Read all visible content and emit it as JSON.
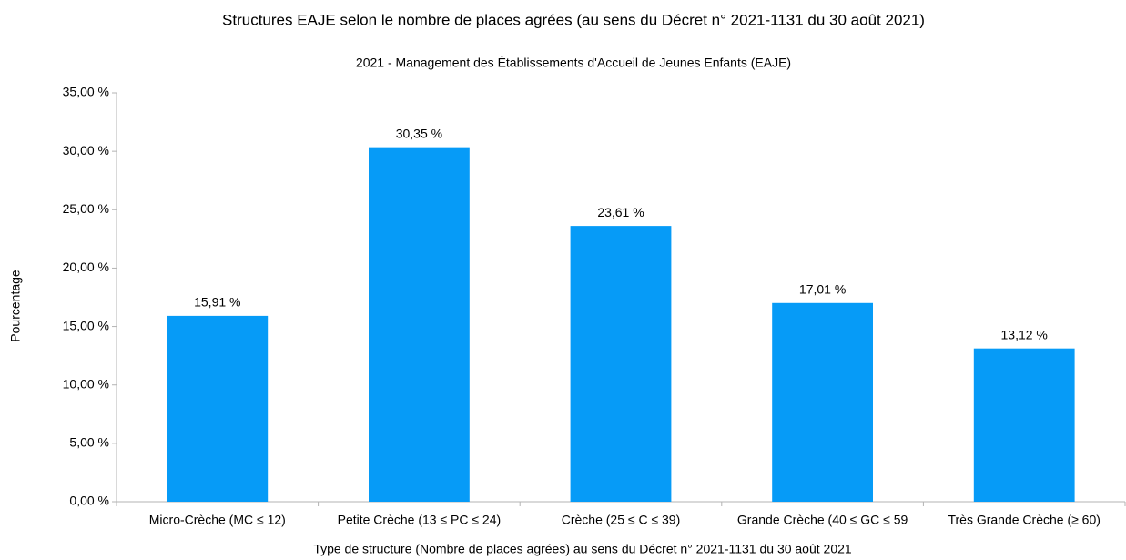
{
  "chart_data": {
    "type": "bar",
    "title": "Structures EAJE selon le nombre de places agrées (au sens du Décret n° 2021-1131 du 30 août 2021)",
    "subtitle": "2021 - Management des Établissements d'Accueil de Jeunes Enfants (EAJE)",
    "x_label": "Type de structure (Nombre de places agrées) au sens du Décret n° 2021-1131 du 30 août 2021",
    "y_label": "Pourcentage",
    "categories": [
      "Micro-Crèche (MC ≤ 12)",
      "Petite Crèche (13 ≤ PC ≤ 24)",
      "Crèche (25 ≤ C ≤ 39)",
      "Grande Crèche (40 ≤ GC ≤ 59",
      "Très Grande Crèche (≥ 60)"
    ],
    "values": [
      15.91,
      30.35,
      23.61,
      17.01,
      13.12
    ],
    "value_labels": [
      "15,91 %",
      "30,35 %",
      "23,61 %",
      "17,01 %",
      "13,12 %"
    ],
    "color": "#069bf7",
    "ylim": [
      0,
      35
    ],
    "yticks": [
      {
        "value": 0,
        "label": "0,00 %"
      },
      {
        "value": 5,
        "label": "5,00 %"
      },
      {
        "value": 10,
        "label": "10,00 %"
      },
      {
        "value": 15,
        "label": "15,00 %"
      },
      {
        "value": 20,
        "label": "20,00 %"
      },
      {
        "value": 25,
        "label": "25,00 %"
      },
      {
        "value": 30,
        "label": "30,00 %"
      },
      {
        "value": 35,
        "label": "35,00 %"
      }
    ],
    "grid": false
  }
}
